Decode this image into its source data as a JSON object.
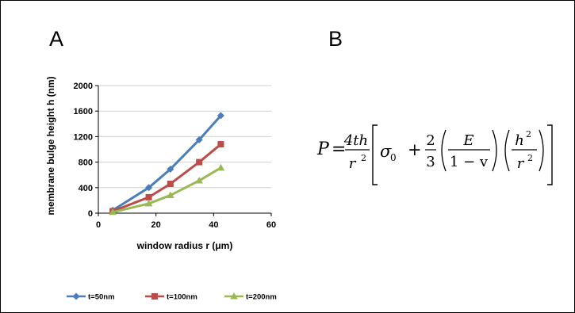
{
  "panel_labels": {
    "a": "A",
    "b": "B"
  },
  "chart_data": {
    "type": "line",
    "xlabel": "window radius r (μm)",
    "ylabel": "membrane bulge height h (nm)",
    "xlim": [
      0,
      60
    ],
    "ylim": [
      0,
      2000
    ],
    "xticks": [
      0,
      20,
      40,
      60
    ],
    "yticks": [
      0,
      400,
      800,
      1200,
      1600,
      2000
    ],
    "grid": "horizontal",
    "legend_position": "bottom",
    "series": [
      {
        "name": "t=50nm",
        "color": "#4a7ebb",
        "marker": "diamond",
        "x": [
          5,
          17.5,
          25,
          35,
          42.5
        ],
        "y": [
          45,
          400,
          690,
          1150,
          1530
        ]
      },
      {
        "name": "t=100nm",
        "color": "#be4b48",
        "marker": "square",
        "x": [
          5,
          17.5,
          25,
          35,
          42.5
        ],
        "y": [
          30,
          250,
          460,
          800,
          1080
        ]
      },
      {
        "name": "t=200nm",
        "color": "#98b954",
        "marker": "triangle",
        "x": [
          5,
          17.5,
          25,
          35,
          42.5
        ],
        "y": [
          15,
          150,
          280,
          510,
          710
        ]
      }
    ]
  },
  "formula": {
    "lhs": "P",
    "equals": "=",
    "frac1_num": "4th",
    "frac1_den_base": "r",
    "frac1_den_exp": "2",
    "sigma": "σ",
    "sigma_sub": "0",
    "plus": "+",
    "frac2_num": "2",
    "frac2_den": "3",
    "frac3_num": "E",
    "frac3_den": "1 − v",
    "frac4_num_base": "h",
    "frac4_num_exp": "2",
    "frac4_den_base": "r",
    "frac4_den_exp": "2"
  }
}
